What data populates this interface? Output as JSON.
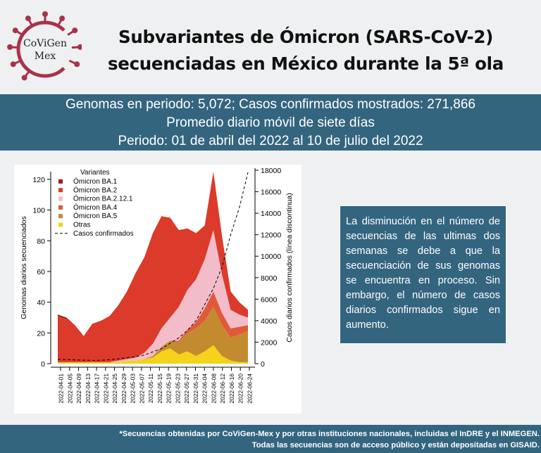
{
  "logo": {
    "line1": "CoViGen",
    "line2": "Mex"
  },
  "title": {
    "line1": "Subvariantes de Ómicron (SARS-CoV-2)",
    "line2": "secuenciadas en México durante la 5ª ola"
  },
  "band": {
    "line1": "Genomas en periodo: 5,072; Casos confirmados mostrados: 271,866",
    "line2": "Promedio diario móvil de siete días",
    "line3": "Periodo: 01 de abril del 2022 al 10 de julio del 2022"
  },
  "note": {
    "text": "La disminución en el número de secuencias de las ultimas dos semanas se debe a que la secuenciación de sus genomas se encuentra en proceso. Sin embargo, el número de casos diarios confirmados sigue en aumento."
  },
  "footer": {
    "line1": "*Secuencias obtenidas por CoViGen-Mex y por otras instituciones nacionales, incluidas el InDRE y el INMEGEN.",
    "line2": "Todas las secuencias son de acceso público y están depositadas en GISAID."
  },
  "colors": {
    "band": "#34657f",
    "logo_red": "#a8324a",
    "BA1": "#9b1f1a",
    "BA2": "#dc3a2a",
    "BA2121": "#f2bcc8",
    "BA4": "#e05a3a",
    "BA5": "#c48a30",
    "Otras": "#f5d21b"
  },
  "chart_data": {
    "type": "area",
    "stacked": true,
    "ylabel": "Genomas diarios secuenciados",
    "y2label": "Casos diarios confirmados (línea discontinua)",
    "ylim": [
      0,
      125
    ],
    "y2lim": [
      0,
      18000
    ],
    "yticks": [
      0,
      20,
      40,
      60,
      80,
      100,
      120
    ],
    "y2ticks": [
      0,
      2000,
      4000,
      6000,
      8000,
      10000,
      12000,
      14000,
      16000,
      18000
    ],
    "legend_title": "Variantes",
    "legend_position": "top-left",
    "xticks": [
      "2022-04-01",
      "2022-04-05",
      "2022-04-09",
      "2022-04-13",
      "2022-04-17",
      "2022-04-21",
      "2022-04-25",
      "2022-04-29",
      "2022-05-03",
      "2022-05-07",
      "2022-05-11",
      "2022-05-15",
      "2022-05-19",
      "2022-05-23",
      "2022-05-27",
      "2022-05-31",
      "2022-06-04",
      "2022-06-08",
      "2022-06-12",
      "2022-06-16",
      "2022-06-20",
      "2022-06-24"
    ],
    "x": [
      "04-01",
      "04-05",
      "04-09",
      "04-13",
      "04-17",
      "04-21",
      "04-25",
      "04-29",
      "05-03",
      "05-07",
      "05-11",
      "05-15",
      "05-19",
      "05-23",
      "05-27",
      "05-31",
      "06-04",
      "06-08",
      "06-12",
      "06-16",
      "06-20",
      "06-24",
      "06-28"
    ],
    "series": [
      {
        "name": "Ómicron BA.1",
        "color_key": "BA1",
        "values": [
          1,
          1,
          0,
          0,
          0,
          0,
          0,
          0,
          0,
          0,
          0,
          0,
          0,
          0,
          0,
          0,
          0,
          0,
          0,
          0,
          0,
          0,
          0
        ]
      },
      {
        "name": "Ómicron BA.2",
        "color_key": "BA2",
        "values": [
          30,
          28,
          24,
          17,
          25,
          27,
          30,
          36,
          44,
          55,
          62,
          72,
          73,
          65,
          50,
          40,
          30,
          22,
          38,
          25,
          12,
          8,
          5
        ]
      },
      {
        "name": "Ómicron BA.2.12.1",
        "color_key": "BA2121",
        "values": [
          0,
          0,
          0,
          0,
          0,
          0,
          0,
          1,
          1,
          2,
          4,
          8,
          12,
          15,
          22,
          26,
          28,
          32,
          40,
          25,
          12,
          8,
          5
        ]
      },
      {
        "name": "Ómicron BA.4",
        "color_key": "BA4",
        "values": [
          0,
          0,
          0,
          0,
          0,
          0,
          0,
          0,
          0,
          0,
          0,
          0,
          0,
          0,
          1,
          2,
          4,
          8,
          10,
          8,
          6,
          5,
          4
        ]
      },
      {
        "name": "Ómicron BA.5",
        "color_key": "BA5",
        "values": [
          0,
          0,
          0,
          0,
          0,
          0,
          0,
          0,
          0,
          0,
          0,
          1,
          3,
          5,
          8,
          12,
          18,
          20,
          25,
          20,
          15,
          18,
          20
        ]
      },
      {
        "name": "Otras",
        "color_key": "Otras",
        "values": [
          1,
          1,
          1,
          1,
          1,
          1,
          1,
          1,
          2,
          2,
          3,
          4,
          8,
          10,
          6,
          8,
          5,
          8,
          12,
          5,
          2,
          1,
          1
        ]
      }
    ],
    "casos": {
      "name": "Casos confirmados",
      "values": [
        400,
        380,
        350,
        330,
        300,
        320,
        380,
        450,
        550,
        650,
        800,
        1100,
        1400,
        1900,
        2400,
        3100,
        4000,
        5500,
        7000,
        9000,
        12000,
        14500,
        17800
      ]
    }
  }
}
